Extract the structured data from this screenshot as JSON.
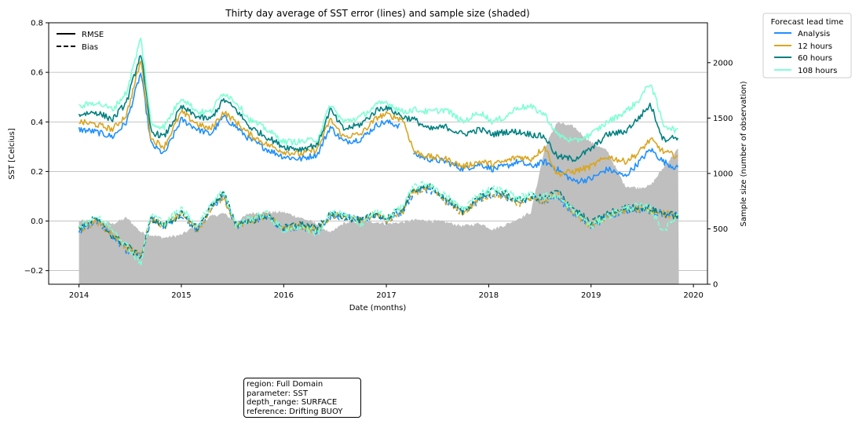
{
  "chart_data": {
    "type": "line",
    "title": "Thirty day average of SST error (lines) and sample size (shaded)",
    "xlabel": "Date (months)",
    "ylabel": "SST [Celcius]",
    "y2label": "Sample size (number of observation)",
    "x_range": [
      "2013-09-15",
      "2020-02-20"
    ],
    "ylim": [
      -0.255,
      0.8
    ],
    "y2lim": [
      0,
      2360
    ],
    "x_ticks": [
      "2014",
      "2015",
      "2016",
      "2017",
      "2018",
      "2019",
      "2020"
    ],
    "y_ticks": [
      "−0.2",
      "0.0",
      "0.2",
      "0.4",
      "0.6",
      "0.8"
    ],
    "y2_ticks": [
      "0",
      "500",
      "1000",
      "1500",
      "2000"
    ],
    "grid": "horizontal",
    "style_legend": {
      "entries": [
        {
          "label": "RMSE",
          "dash": "solid"
        },
        {
          "label": "Bias",
          "dash": "dashed"
        }
      ],
      "position": "upper-left"
    },
    "lead_legend": {
      "title": "Forecast lead time",
      "position": "outside-right",
      "entries": [
        {
          "label": "Analysis",
          "color": "#1e90ff"
        },
        {
          "label": "12 hours",
          "color": "#daa520"
        },
        {
          "label": "60 hours",
          "color": "#008080"
        },
        {
          "label": "108 hours",
          "color": "#7fffd4"
        }
      ]
    },
    "sample_color": "#bfbfbf",
    "dates": [
      "2014-01-01",
      "2014-03-01",
      "2014-05-01",
      "2014-06-20",
      "2014-08-10",
      "2014-09-15",
      "2014-11-01",
      "2015-01-01",
      "2015-03-01",
      "2015-04-15",
      "2015-06-01",
      "2015-07-15",
      "2015-09-01",
      "2015-11-01",
      "2016-01-01",
      "2016-03-01",
      "2016-05-01",
      "2016-06-15",
      "2016-08-01",
      "2016-10-01",
      "2016-12-01",
      "2017-01-01",
      "2017-03-01",
      "2017-04-10",
      "2017-06-01",
      "2017-08-01",
      "2017-10-01",
      "2017-12-01",
      "2018-01-15",
      "2018-03-01",
      "2018-04-15",
      "2018-06-01",
      "2018-07-20",
      "2018-09-01",
      "2018-11-01",
      "2019-01-01",
      "2019-03-01",
      "2019-05-01",
      "2019-06-15",
      "2019-08-01",
      "2019-09-15",
      "2019-11-10"
    ],
    "samples": [
      570,
      575,
      545,
      600,
      470,
      445,
      420,
      445,
      540,
      610,
      640,
      560,
      640,
      650,
      650,
      600,
      545,
      460,
      550,
      570,
      560,
      545,
      560,
      580,
      575,
      560,
      525,
      550,
      495,
      535,
      590,
      650,
      1230,
      1460,
      1420,
      1280,
      1200,
      890,
      870,
      890,
      1050,
      1230
    ],
    "series": [
      {
        "name": "Analysis",
        "color": "#1e90ff",
        "rmse": [
          0.37,
          0.36,
          0.34,
          0.4,
          0.6,
          0.31,
          0.27,
          0.41,
          0.37,
          0.35,
          0.42,
          0.38,
          0.33,
          0.29,
          0.26,
          0.25,
          0.27,
          0.38,
          0.32,
          0.33,
          0.39,
          0.4,
          0.38,
          0.27,
          0.25,
          0.24,
          0.21,
          0.23,
          0.21,
          0.22,
          0.24,
          0.22,
          0.24,
          0.21,
          0.16,
          0.17,
          0.21,
          0.18,
          0.23,
          0.29,
          0.24,
          0.21
        ],
        "bias": [
          -0.04,
          0.0,
          -0.06,
          -0.12,
          -0.14,
          0.01,
          -0.02,
          0.03,
          -0.04,
          0.05,
          0.1,
          -0.02,
          0.0,
          0.02,
          -0.03,
          -0.02,
          -0.04,
          0.02,
          0.02,
          0.0,
          0.03,
          0.0,
          0.04,
          0.12,
          0.13,
          0.08,
          0.03,
          0.09,
          0.11,
          0.1,
          0.07,
          0.09,
          0.08,
          0.1,
          0.03,
          -0.02,
          0.02,
          0.04,
          0.05,
          0.04,
          0.03,
          0.02
        ]
      },
      {
        "name": "12 hours",
        "color": "#daa520",
        "rmse": [
          0.4,
          0.39,
          0.37,
          0.43,
          0.65,
          0.33,
          0.3,
          0.44,
          0.39,
          0.37,
          0.44,
          0.4,
          0.35,
          0.31,
          0.28,
          0.27,
          0.29,
          0.41,
          0.34,
          0.35,
          0.42,
          0.43,
          0.41,
          0.28,
          0.26,
          0.25,
          0.22,
          0.24,
          0.23,
          0.24,
          0.26,
          0.25,
          0.3,
          0.19,
          0.2,
          0.22,
          0.26,
          0.24,
          0.27,
          0.33,
          0.28,
          0.26
        ],
        "bias": [
          -0.04,
          0.0,
          -0.05,
          -0.11,
          -0.14,
          0.01,
          -0.02,
          0.03,
          -0.04,
          0.05,
          0.1,
          -0.02,
          0.0,
          0.02,
          -0.03,
          -0.02,
          -0.04,
          0.02,
          0.02,
          0.0,
          0.03,
          0.0,
          0.04,
          0.12,
          0.13,
          0.08,
          0.03,
          0.09,
          0.11,
          0.1,
          0.07,
          0.09,
          0.08,
          0.11,
          0.03,
          -0.02,
          0.02,
          0.04,
          0.05,
          0.04,
          0.03,
          0.02
        ]
      },
      {
        "name": "60 hours",
        "color": "#008080",
        "rmse": [
          0.43,
          0.44,
          0.41,
          0.48,
          0.68,
          0.36,
          0.34,
          0.46,
          0.42,
          0.41,
          0.49,
          0.45,
          0.38,
          0.34,
          0.3,
          0.29,
          0.31,
          0.45,
          0.37,
          0.39,
          0.45,
          0.46,
          0.42,
          0.41,
          0.37,
          0.38,
          0.35,
          0.37,
          0.35,
          0.36,
          0.36,
          0.35,
          0.34,
          0.26,
          0.25,
          0.29,
          0.35,
          0.36,
          0.41,
          0.47,
          0.33,
          0.34
        ],
        "bias": [
          -0.03,
          0.01,
          -0.06,
          -0.1,
          -0.15,
          0.01,
          -0.02,
          0.03,
          -0.03,
          0.06,
          0.11,
          -0.01,
          0.0,
          0.02,
          -0.03,
          -0.01,
          -0.03,
          0.03,
          0.02,
          0.0,
          0.03,
          0.01,
          0.05,
          0.13,
          0.14,
          0.09,
          0.04,
          0.1,
          0.12,
          0.11,
          0.08,
          0.1,
          0.09,
          0.12,
          0.05,
          -0.01,
          0.03,
          0.05,
          0.06,
          0.05,
          0.03,
          0.02
        ]
      },
      {
        "name": "108 hours",
        "color": "#7fffd4",
        "rmse": [
          0.46,
          0.48,
          0.45,
          0.52,
          0.74,
          0.39,
          0.38,
          0.5,
          0.44,
          0.44,
          0.52,
          0.48,
          0.41,
          0.37,
          0.32,
          0.32,
          0.33,
          0.47,
          0.4,
          0.42,
          0.47,
          0.48,
          0.44,
          0.45,
          0.44,
          0.45,
          0.4,
          0.44,
          0.4,
          0.42,
          0.46,
          0.46,
          0.43,
          0.35,
          0.32,
          0.35,
          0.4,
          0.44,
          0.48,
          0.56,
          0.39,
          0.36
        ],
        "bias": [
          -0.02,
          0.02,
          -0.03,
          -0.1,
          -0.17,
          0.03,
          -0.01,
          0.05,
          -0.02,
          0.07,
          0.12,
          -0.02,
          0.01,
          0.03,
          -0.04,
          -0.02,
          -0.05,
          0.03,
          0.03,
          -0.01,
          0.04,
          0.01,
          0.06,
          0.14,
          0.15,
          0.1,
          0.05,
          0.11,
          0.13,
          0.12,
          0.09,
          0.11,
          0.1,
          0.1,
          0.04,
          -0.02,
          0.02,
          0.05,
          0.06,
          0.05,
          -0.04,
          0.03
        ]
      }
    ]
  },
  "info_box": [
    "region: Full Domain",
    "parameter: SST",
    "depth_range: SURFACE",
    "reference: Drifting BUOY"
  ]
}
